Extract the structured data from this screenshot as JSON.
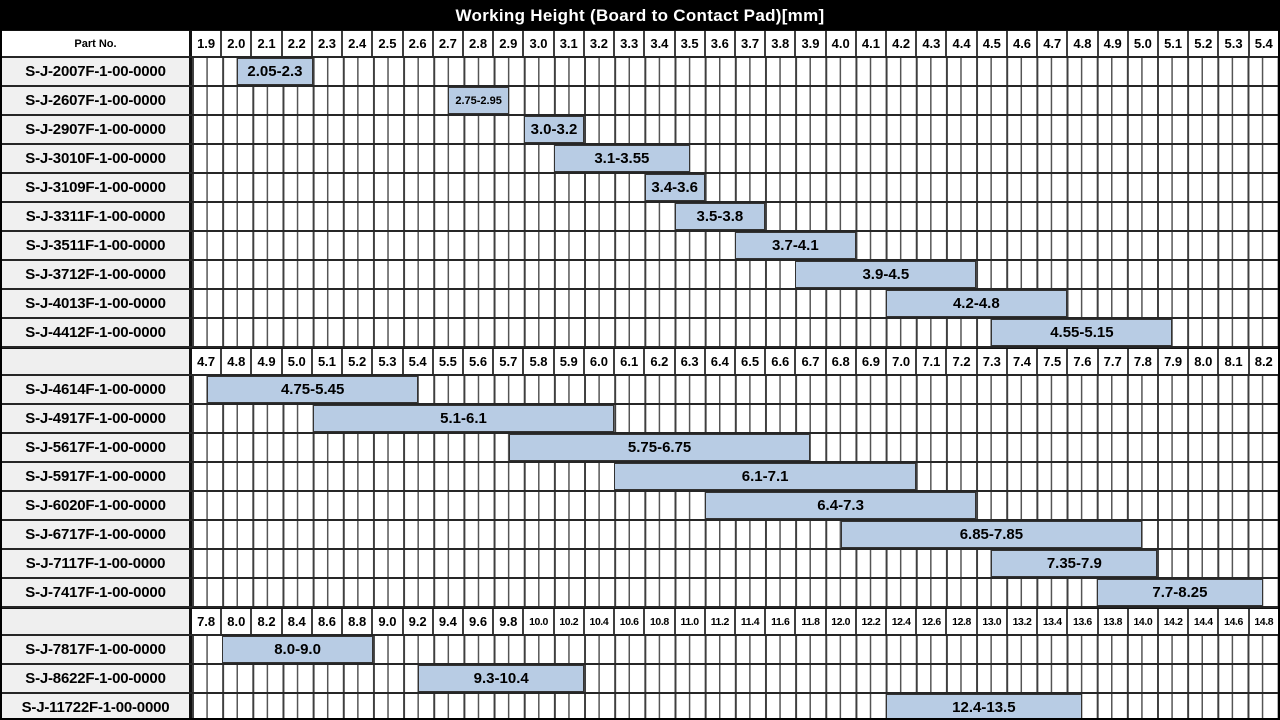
{
  "title": "Working Height (Board to Contact Pad)[mm]",
  "part_no_header": "Part No.",
  "colors": {
    "header_bg": "#000000",
    "header_text": "#ffffff",
    "bar_fill": "#b8cce4",
    "bar_border": "#333333",
    "part_cell_bg": "#f0f0f0",
    "grid_major": "#3f3f3f",
    "grid_minor": "#555555"
  },
  "chart_data": {
    "type": "range-bar",
    "title": "Working Height (Board to Contact Pad)[mm]",
    "unit": "mm",
    "legend_position": "none",
    "grid": true,
    "sections": [
      {
        "axis": {
          "start": 1.9,
          "step": 0.1,
          "columns": 36,
          "min": 1.9,
          "max": 5.5
        },
        "ticks": [
          "1.9",
          "2.0",
          "2.1",
          "2.2",
          "2.3",
          "2.4",
          "2.5",
          "2.6",
          "2.7",
          "2.8",
          "2.9",
          "3.0",
          "3.1",
          "3.2",
          "3.3",
          "3.4",
          "3.5",
          "3.6",
          "3.7",
          "3.8",
          "3.9",
          "4.0",
          "4.1",
          "4.2",
          "4.3",
          "4.4",
          "4.5",
          "4.6",
          "4.7",
          "4.8",
          "4.9",
          "5.0",
          "5.1",
          "5.2",
          "5.3",
          "5.4"
        ],
        "rows": [
          {
            "part_no": "S-J-2007F-1-00-0000",
            "label": "2.05-2.3",
            "start": 2.05,
            "end": 2.3
          },
          {
            "part_no": "S-J-2607F-1-00-0000",
            "label": "2.75-2.95",
            "start": 2.75,
            "end": 2.95,
            "small": true
          },
          {
            "part_no": "S-J-2907F-1-00-0000",
            "label": "3.0-3.2",
            "start": 3.0,
            "end": 3.2
          },
          {
            "part_no": "S-J-3010F-1-00-0000",
            "label": "3.1-3.55",
            "start": 3.1,
            "end": 3.55
          },
          {
            "part_no": "S-J-3109F-1-00-0000",
            "label": "3.4-3.6",
            "start": 3.4,
            "end": 3.6
          },
          {
            "part_no": "S-J-3311F-1-00-0000",
            "label": "3.5-3.8",
            "start": 3.5,
            "end": 3.8
          },
          {
            "part_no": "S-J-3511F-1-00-0000",
            "label": "3.7-4.1",
            "start": 3.7,
            "end": 4.1
          },
          {
            "part_no": "S-J-3712F-1-00-0000",
            "label": "3.9-4.5",
            "start": 3.9,
            "end": 4.5
          },
          {
            "part_no": "S-J-4013F-1-00-0000",
            "label": "4.2-4.8",
            "start": 4.2,
            "end": 4.8
          },
          {
            "part_no": "S-J-4412F-1-00-0000",
            "label": "4.55-5.15",
            "start": 4.55,
            "end": 5.15
          }
        ]
      },
      {
        "axis": {
          "start": 4.7,
          "step": 0.1,
          "columns": 36,
          "min": 4.7,
          "max": 8.3
        },
        "ticks": [
          "4.7",
          "4.8",
          "4.9",
          "5.0",
          "5.1",
          "5.2",
          "5.3",
          "5.4",
          "5.5",
          "5.6",
          "5.7",
          "5.8",
          "5.9",
          "6.0",
          "6.1",
          "6.2",
          "6.3",
          "6.4",
          "6.5",
          "6.6",
          "6.7",
          "6.8",
          "6.9",
          "7.0",
          "7.1",
          "7.2",
          "7.3",
          "7.4",
          "7.5",
          "7.6",
          "7.7",
          "7.8",
          "7.9",
          "8.0",
          "8.1",
          "8.2"
        ],
        "rows": [
          {
            "part_no": "S-J-4614F-1-00-0000",
            "label": "4.75-5.45",
            "start": 4.75,
            "end": 5.45
          },
          {
            "part_no": "S-J-4917F-1-00-0000",
            "label": "5.1-6.1",
            "start": 5.1,
            "end": 6.1
          },
          {
            "part_no": "S-J-5617F-1-00-0000",
            "label": "5.75-6.75",
            "start": 5.75,
            "end": 6.75
          },
          {
            "part_no": "S-J-5917F-1-00-0000",
            "label": "6.1-7.1",
            "start": 6.1,
            "end": 7.1
          },
          {
            "part_no": "S-J-6020F-1-00-0000",
            "label": "6.4-7.3",
            "start": 6.4,
            "end": 7.3
          },
          {
            "part_no": "S-J-6717F-1-00-0000",
            "label": "6.85-7.85",
            "start": 6.85,
            "end": 7.85
          },
          {
            "part_no": "S-J-7117F-1-00-0000",
            "label": "7.35-7.9",
            "start": 7.35,
            "end": 7.9
          },
          {
            "part_no": "S-J-7417F-1-00-0000",
            "label": "7.7-8.25",
            "start": 7.7,
            "end": 8.25
          }
        ]
      },
      {
        "axis": {
          "start": 7.8,
          "step": 0.2,
          "columns": 36,
          "min": 7.8,
          "max": 15.0
        },
        "ticks": [
          "7.8",
          "8.0",
          "8.2",
          "8.4",
          "8.6",
          "8.8",
          "9.0",
          "9.2",
          "9.4",
          "9.6",
          "9.8",
          "10.0",
          "10.2",
          "10.4",
          "10.6",
          "10.8",
          "11.0",
          "11.2",
          "11.4",
          "11.6",
          "11.8",
          "12.0",
          "12.2",
          "12.4",
          "12.6",
          "12.8",
          "13.0",
          "13.2",
          "13.4",
          "13.6",
          "13.8",
          "14.0",
          "14.2",
          "14.4",
          "14.6",
          "14.8"
        ],
        "rows": [
          {
            "part_no": "S-J-7817F-1-00-0000",
            "label": "8.0-9.0",
            "start": 8.0,
            "end": 9.0
          },
          {
            "part_no": "S-J-8622F-1-00-0000",
            "label": "9.3-10.4",
            "start": 9.3,
            "end": 10.4
          },
          {
            "part_no": "S-J-11722F-1-00-0000",
            "label": "12.4-13.5",
            "start": 12.4,
            "end": 13.5,
            "draw_end": 13.7
          }
        ]
      }
    ]
  }
}
